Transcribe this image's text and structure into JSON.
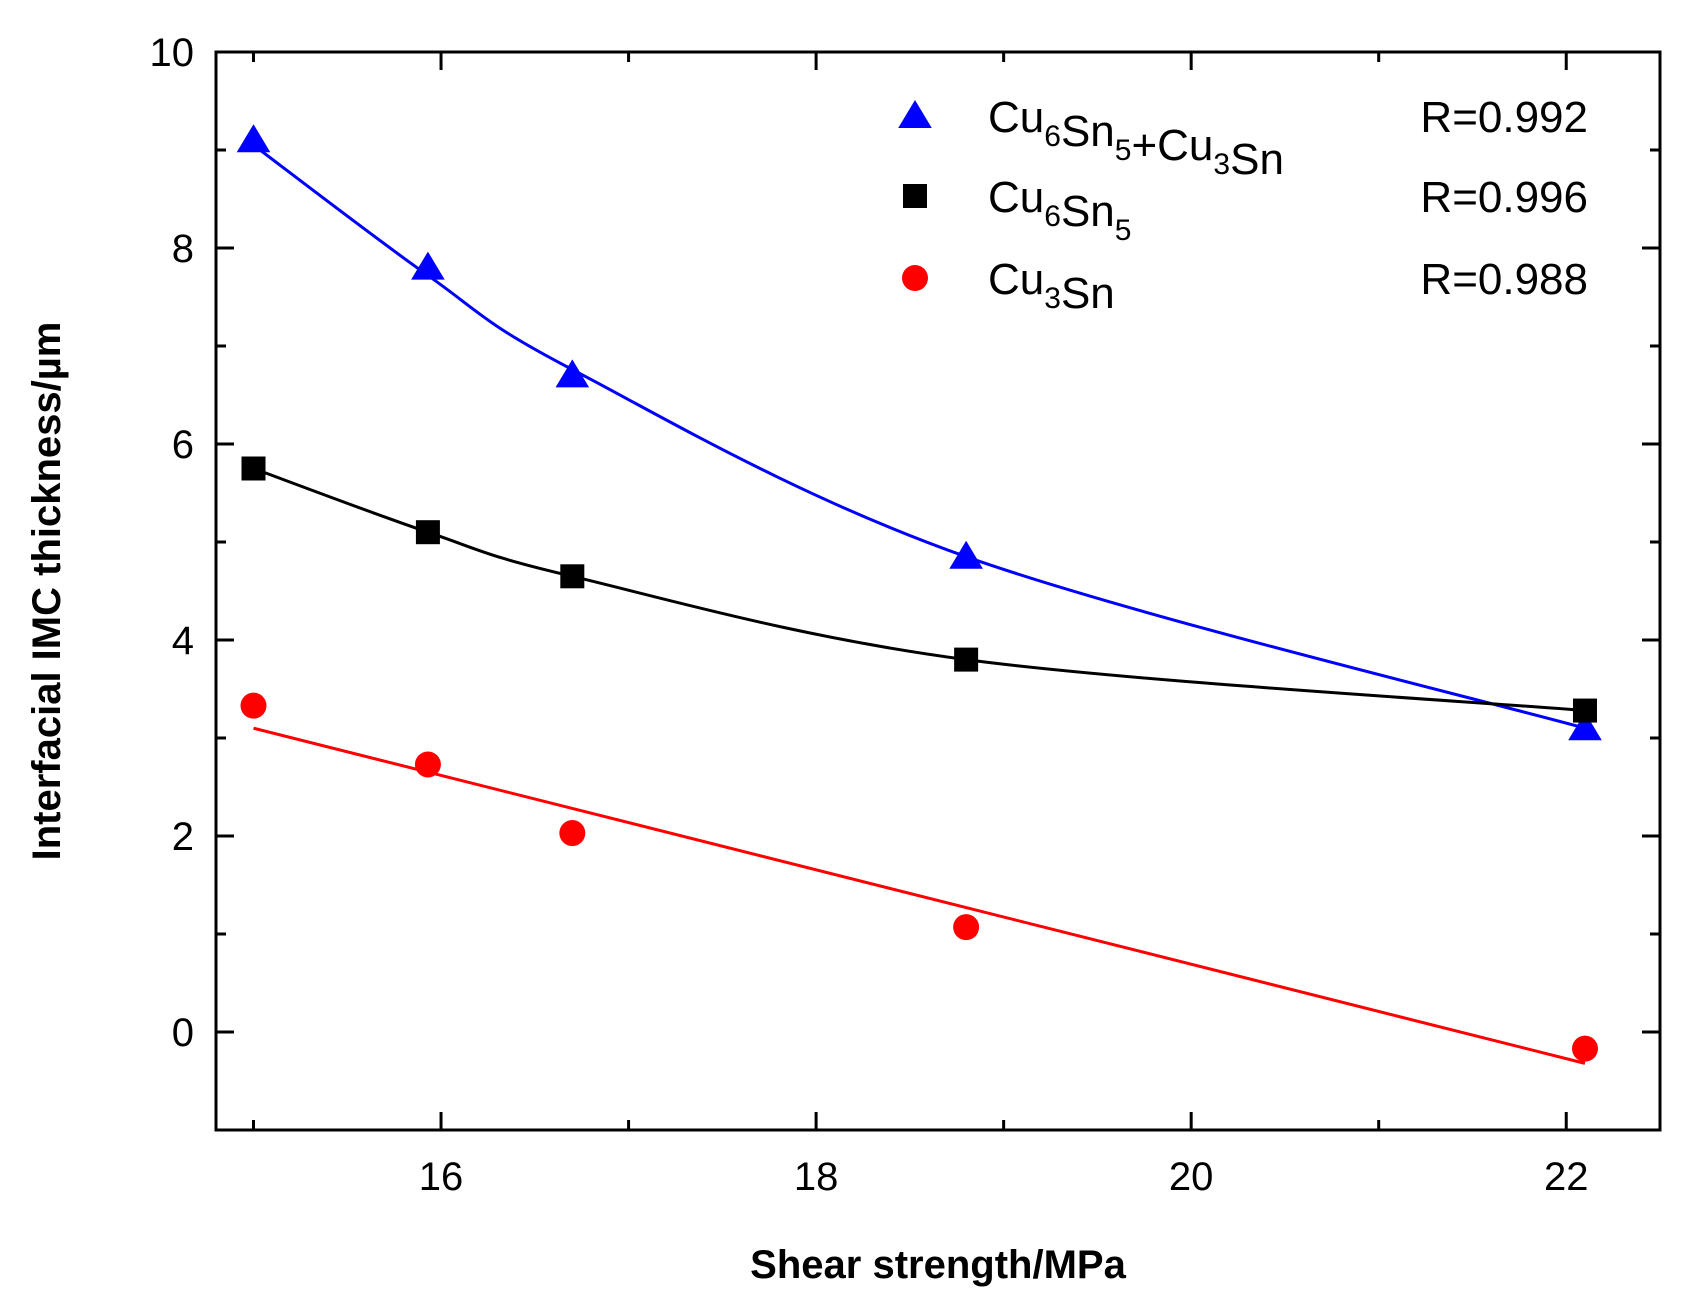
{
  "chart_data": {
    "type": "scatter",
    "title": "",
    "xlabel": "Shear strength/MPa",
    "ylabel": "Interfacial IMC thickness/µm",
    "xlim": [
      14.8,
      22.5
    ],
    "ylim": [
      -1,
      10
    ],
    "xticks": [
      16,
      18,
      20,
      22
    ],
    "xtick_labels": [
      "16",
      "18",
      "20",
      "22"
    ],
    "yticks": [
      0,
      2,
      4,
      6,
      8,
      10
    ],
    "ytick_labels": [
      "0",
      "2",
      "4",
      "6",
      "8",
      "10"
    ],
    "legend_position": "top-right",
    "series": [
      {
        "name": "Cu6Sn5+Cu3Sn",
        "legend_parts": [
          {
            "t": "Cu",
            "sub": false
          },
          {
            "t": "6",
            "sub": true
          },
          {
            "t": "Sn",
            "sub": false
          },
          {
            "t": "5",
            "sub": true
          },
          {
            "t": "+Cu",
            "sub": false
          },
          {
            "t": "3",
            "sub": true
          },
          {
            "t": "Sn",
            "sub": false
          }
        ],
        "r_label": "R=0.992",
        "marker": "triangle",
        "color": "#0000ff",
        "x": [
          15.0,
          15.93,
          16.7,
          18.8,
          22.1
        ],
        "y": [
          9.1,
          7.8,
          6.7,
          4.85,
          3.1
        ],
        "fit_type": "exponential",
        "fit_y": [
          9.05,
          7.72,
          6.76,
          4.85,
          3.1
        ]
      },
      {
        "name": "Cu6Sn5",
        "legend_parts": [
          {
            "t": "Cu",
            "sub": false
          },
          {
            "t": "6",
            "sub": true
          },
          {
            "t": "Sn",
            "sub": false
          },
          {
            "t": "5",
            "sub": true
          }
        ],
        "r_label": "R=0.996",
        "marker": "square",
        "color": "#000000",
        "x": [
          15.0,
          15.93,
          16.7,
          18.8,
          22.1
        ],
        "y": [
          5.75,
          5.1,
          4.65,
          3.8,
          3.28
        ],
        "fit_type": "exponential",
        "fit_y": [
          5.75,
          5.1,
          4.65,
          3.8,
          3.28
        ]
      },
      {
        "name": "Cu3Sn",
        "legend_parts": [
          {
            "t": "Cu",
            "sub": false
          },
          {
            "t": "3",
            "sub": true
          },
          {
            "t": "Sn",
            "sub": false
          }
        ],
        "r_label": "R=0.988",
        "marker": "circle",
        "color": "#ff0000",
        "x": [
          15.0,
          15.93,
          16.7,
          18.8,
          22.1
        ],
        "y": [
          3.33,
          2.73,
          2.03,
          1.07,
          -0.17
        ],
        "fit_type": "linear",
        "fit_line": {
          "x": [
            15.0,
            22.1
          ],
          "y": [
            3.1,
            -0.32
          ]
        }
      }
    ]
  }
}
